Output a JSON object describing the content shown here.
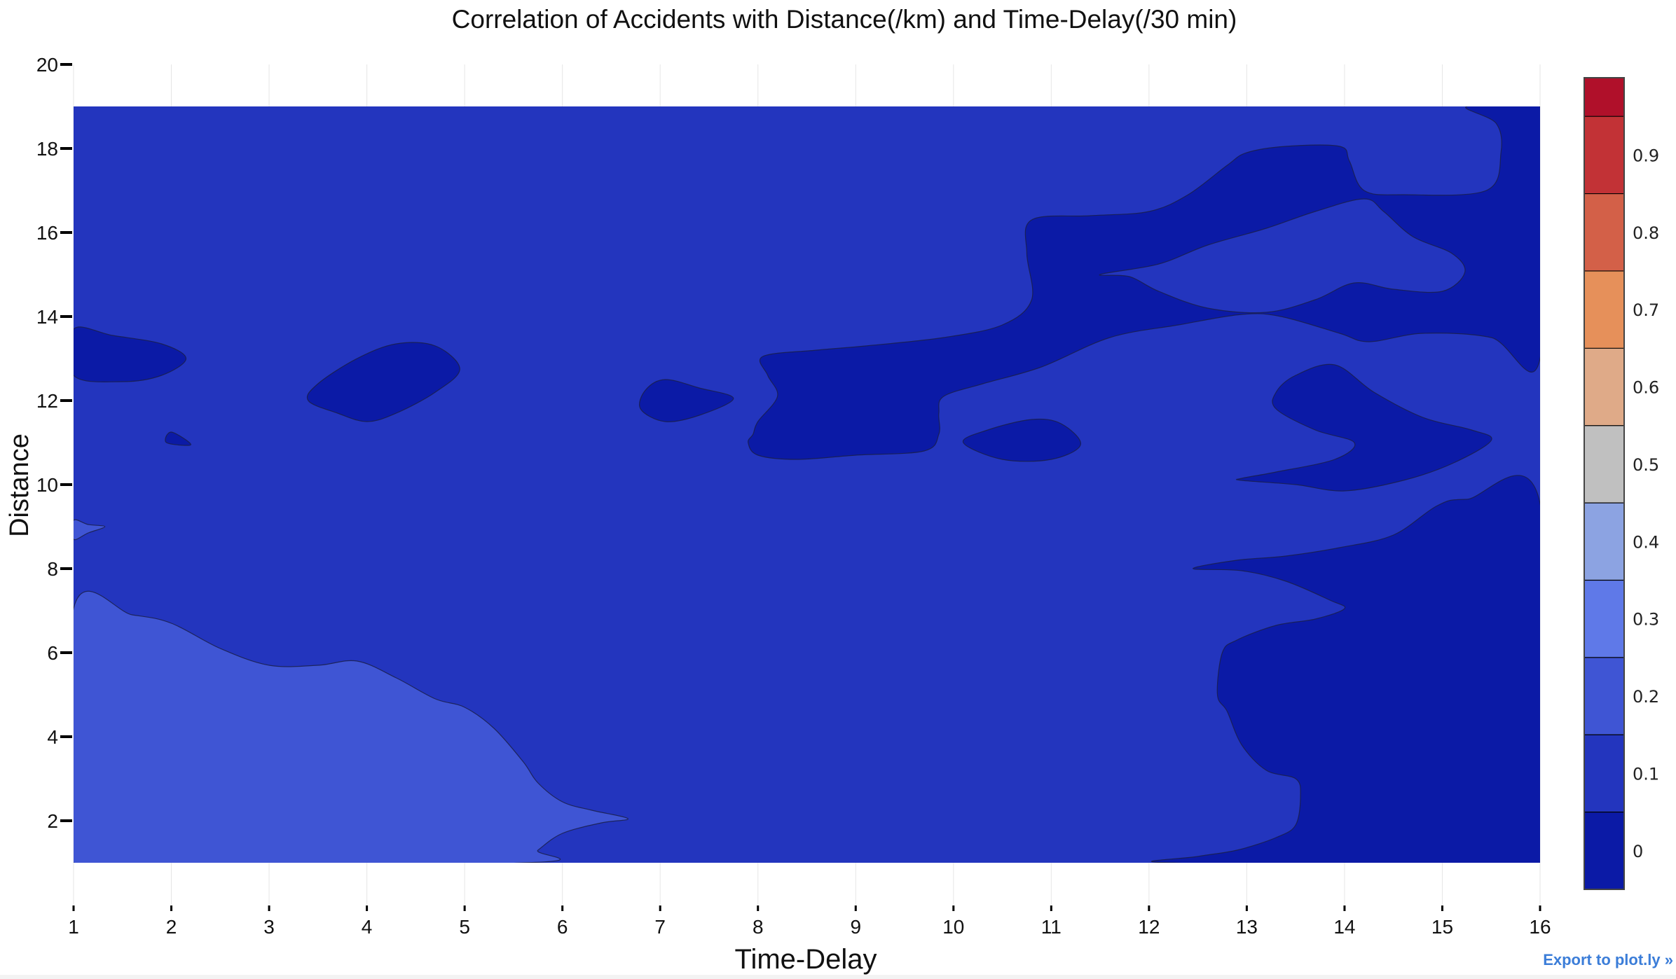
{
  "chart_data": {
    "type": "contour",
    "title": "Correlation of Accidents with Distance(/km) and Time-Delay(/30 min)",
    "xlabel": "Time-Delay",
    "ylabel": "Distance",
    "xlim": [
      1,
      16
    ],
    "ylim": [
      0,
      20
    ],
    "x_ticks": [
      "1",
      "2",
      "3",
      "4",
      "5",
      "6",
      "7",
      "8",
      "9",
      "10",
      "11",
      "12",
      "13",
      "14",
      "15",
      "16"
    ],
    "y_ticks": [
      "2",
      "4",
      "6",
      "8",
      "10",
      "12",
      "14",
      "16",
      "18",
      "20"
    ],
    "data_extent": {
      "x": [
        1,
        16
      ],
      "y": [
        1,
        19
      ]
    },
    "colorbar": {
      "ticks": [
        "0",
        "0.1",
        "0.2",
        "0.3",
        "0.4",
        "0.5",
        "0.6",
        "0.7",
        "0.8",
        "0.9"
      ],
      "levels": [
        {
          "from": -0.05,
          "to": 0.05,
          "color": "#0b1aa6"
        },
        {
          "from": 0.05,
          "to": 0.15,
          "color": "#2335be"
        },
        {
          "from": 0.15,
          "to": 0.25,
          "color": "#3f55d4"
        },
        {
          "from": 0.25,
          "to": 0.35,
          "color": "#5f79e8"
        },
        {
          "from": 0.35,
          "to": 0.45,
          "color": "#8ca3e2"
        },
        {
          "from": 0.45,
          "to": 0.55,
          "color": "#c0c0c0"
        },
        {
          "from": 0.55,
          "to": 0.65,
          "color": "#dfaa88"
        },
        {
          "from": 0.65,
          "to": 0.75,
          "color": "#e6905a"
        },
        {
          "from": 0.75,
          "to": 0.85,
          "color": "#d36048"
        },
        {
          "from": 0.85,
          "to": 0.95,
          "color": "#c23236"
        },
        {
          "from": 0.95,
          "to": 1.0,
          "color": "#b0102a"
        }
      ]
    },
    "background_level": 0.1,
    "regions": [
      {
        "name": "light-region-bottom-left",
        "level": 0.2,
        "points": [
          [
            1,
            7.05
          ],
          [
            1.6,
            6.9
          ],
          [
            2,
            6.7
          ],
          [
            2.5,
            6.1
          ],
          [
            3,
            5.7
          ],
          [
            3.5,
            5.7
          ],
          [
            3.9,
            5.8
          ],
          [
            4.3,
            5.4
          ],
          [
            4.7,
            4.9
          ],
          [
            5,
            4.7
          ],
          [
            5.3,
            4.2
          ],
          [
            5.6,
            3.4
          ],
          [
            5.75,
            2.9
          ],
          [
            6,
            2.45
          ],
          [
            6.3,
            2.25
          ],
          [
            6.67,
            2.05
          ],
          [
            6.4,
            1.95
          ],
          [
            6,
            1.7
          ],
          [
            5.75,
            1.3
          ],
          [
            5.6,
            1.0
          ],
          [
            1,
            1.0
          ]
        ]
      },
      {
        "name": "dark-region-bottom-right",
        "level": 0.0,
        "points": [
          [
            12.25,
            1.0
          ],
          [
            12.5,
            1.15
          ],
          [
            12.9,
            1.3
          ],
          [
            13.3,
            1.6
          ],
          [
            13.5,
            1.9
          ],
          [
            13.55,
            2.6
          ],
          [
            13.5,
            3.0
          ],
          [
            13.2,
            3.2
          ],
          [
            12.95,
            3.8
          ],
          [
            12.8,
            4.6
          ],
          [
            12.7,
            5.0
          ],
          [
            12.75,
            6.0
          ],
          [
            12.9,
            6.3
          ],
          [
            13.3,
            6.65
          ],
          [
            13.7,
            6.8
          ],
          [
            14.0,
            7.05
          ],
          [
            13.85,
            7.25
          ],
          [
            13.4,
            7.7
          ],
          [
            12.95,
            7.95
          ],
          [
            12.45,
            8.0
          ],
          [
            12.9,
            8.2
          ],
          [
            13.4,
            8.3
          ],
          [
            13.95,
            8.5
          ],
          [
            14.5,
            8.8
          ],
          [
            14.95,
            9.5
          ],
          [
            15.25,
            9.65
          ],
          [
            16,
            9.55
          ],
          [
            16,
            1.0
          ]
        ]
      },
      {
        "name": "dark-region-top-right",
        "level": 0.0,
        "points": [
          [
            15.25,
            19.0
          ],
          [
            15.55,
            18.6
          ],
          [
            15.6,
            17.9
          ],
          [
            15.45,
            17.0
          ],
          [
            14.6,
            16.9
          ],
          [
            14.2,
            17.0
          ],
          [
            14.05,
            17.7
          ],
          [
            13.95,
            18.05
          ],
          [
            13.4,
            18.05
          ],
          [
            13.0,
            17.9
          ],
          [
            12.8,
            17.6
          ],
          [
            12.4,
            16.9
          ],
          [
            12.0,
            16.5
          ],
          [
            11.4,
            16.4
          ],
          [
            10.8,
            16.3
          ],
          [
            10.75,
            15.5
          ],
          [
            10.8,
            14.4
          ],
          [
            10.5,
            13.8
          ],
          [
            9.9,
            13.5
          ],
          [
            9.1,
            13.3
          ],
          [
            8.6,
            13.2
          ],
          [
            8.05,
            13.05
          ],
          [
            8.1,
            12.6
          ],
          [
            8.2,
            12.1
          ],
          [
            8.0,
            11.5
          ],
          [
            7.95,
            11.2
          ],
          [
            7.9,
            11.0
          ],
          [
            8.0,
            10.7
          ],
          [
            8.4,
            10.6
          ],
          [
            9.0,
            10.7
          ],
          [
            9.7,
            10.8
          ],
          [
            9.85,
            11.2
          ],
          [
            9.85,
            11.7
          ],
          [
            9.9,
            12.1
          ],
          [
            10.3,
            12.4
          ],
          [
            10.9,
            12.8
          ],
          [
            11.6,
            13.5
          ],
          [
            12.3,
            13.8
          ],
          [
            12.95,
            14.05
          ],
          [
            13.35,
            14.0
          ],
          [
            13.95,
            13.6
          ],
          [
            14.25,
            13.4
          ],
          [
            14.8,
            13.6
          ],
          [
            15.5,
            13.5
          ],
          [
            16,
            13.0
          ],
          [
            16,
            19.0
          ]
        ]
      },
      {
        "name": "light-island-upper-right",
        "level": 0.1,
        "points": [
          [
            11.5,
            15.0
          ],
          [
            12.1,
            15.25
          ],
          [
            12.6,
            15.7
          ],
          [
            13.2,
            16.1
          ],
          [
            13.7,
            16.5
          ],
          [
            14.2,
            16.8
          ],
          [
            14.4,
            16.5
          ],
          [
            14.7,
            15.9
          ],
          [
            15.1,
            15.5
          ],
          [
            15.23,
            15.05
          ],
          [
            15.0,
            14.6
          ],
          [
            14.5,
            14.65
          ],
          [
            14.1,
            14.8
          ],
          [
            13.7,
            14.4
          ],
          [
            13.2,
            14.1
          ],
          [
            12.6,
            14.2
          ],
          [
            12.1,
            14.6
          ],
          [
            11.8,
            14.95
          ]
        ]
      },
      {
        "name": "dark-patch-right-middle",
        "level": 0.0,
        "points": [
          [
            12.95,
            10.1
          ],
          [
            13.5,
            10.0
          ],
          [
            14.0,
            9.85
          ],
          [
            14.6,
            10.1
          ],
          [
            15.1,
            10.5
          ],
          [
            15.5,
            11.05
          ],
          [
            15.3,
            11.3
          ],
          [
            14.8,
            11.6
          ],
          [
            14.3,
            12.2
          ],
          [
            13.9,
            12.85
          ],
          [
            13.5,
            12.6
          ],
          [
            13.3,
            12.2
          ],
          [
            13.3,
            11.8
          ],
          [
            13.7,
            11.3
          ],
          [
            14.1,
            11.0
          ],
          [
            13.9,
            10.6
          ],
          [
            13.3,
            10.3
          ],
          [
            12.95,
            10.15
          ]
        ]
      },
      {
        "name": "dark-island-time10-11",
        "level": 0.0,
        "points": [
          [
            10.1,
            11.0
          ],
          [
            10.5,
            10.6
          ],
          [
            11.0,
            10.6
          ],
          [
            11.3,
            10.95
          ],
          [
            11.1,
            11.45
          ],
          [
            10.8,
            11.55
          ],
          [
            10.35,
            11.3
          ]
        ]
      },
      {
        "name": "dark-island-time7",
        "level": 0.0,
        "points": [
          [
            6.8,
            11.8
          ],
          [
            7.05,
            11.5
          ],
          [
            7.4,
            11.65
          ],
          [
            7.75,
            12.05
          ],
          [
            7.4,
            12.3
          ],
          [
            7.05,
            12.5
          ],
          [
            6.85,
            12.25
          ]
        ]
      },
      {
        "name": "dark-island-time4",
        "level": 0.0,
        "points": [
          [
            3.4,
            12.0
          ],
          [
            3.7,
            11.7
          ],
          [
            4.0,
            11.5
          ],
          [
            4.3,
            11.7
          ],
          [
            4.7,
            12.2
          ],
          [
            4.95,
            12.75
          ],
          [
            4.7,
            13.3
          ],
          [
            4.3,
            13.35
          ],
          [
            3.9,
            13.0
          ],
          [
            3.5,
            12.4
          ]
        ]
      },
      {
        "name": "dark-island-left-edge",
        "level": 0.0,
        "points": [
          [
            1,
            12.6
          ],
          [
            1.5,
            12.45
          ],
          [
            1.9,
            12.6
          ],
          [
            2.15,
            13.0
          ],
          [
            1.9,
            13.35
          ],
          [
            1.4,
            13.55
          ],
          [
            1,
            13.7
          ]
        ]
      },
      {
        "name": "dark-dot-time2",
        "level": 0.0,
        "points": [
          [
            1.95,
            11.0
          ],
          [
            2.2,
            10.95
          ],
          [
            2.0,
            11.25
          ]
        ]
      },
      {
        "name": "light-sliver-left-edge",
        "level": 0.2,
        "points": [
          [
            1,
            8.7
          ],
          [
            1.15,
            8.85
          ],
          [
            1.32,
            9.0
          ],
          [
            1.15,
            9.05
          ],
          [
            1,
            9.15
          ]
        ]
      }
    ]
  },
  "ui": {
    "export_link": "Export to plot.ly »"
  }
}
